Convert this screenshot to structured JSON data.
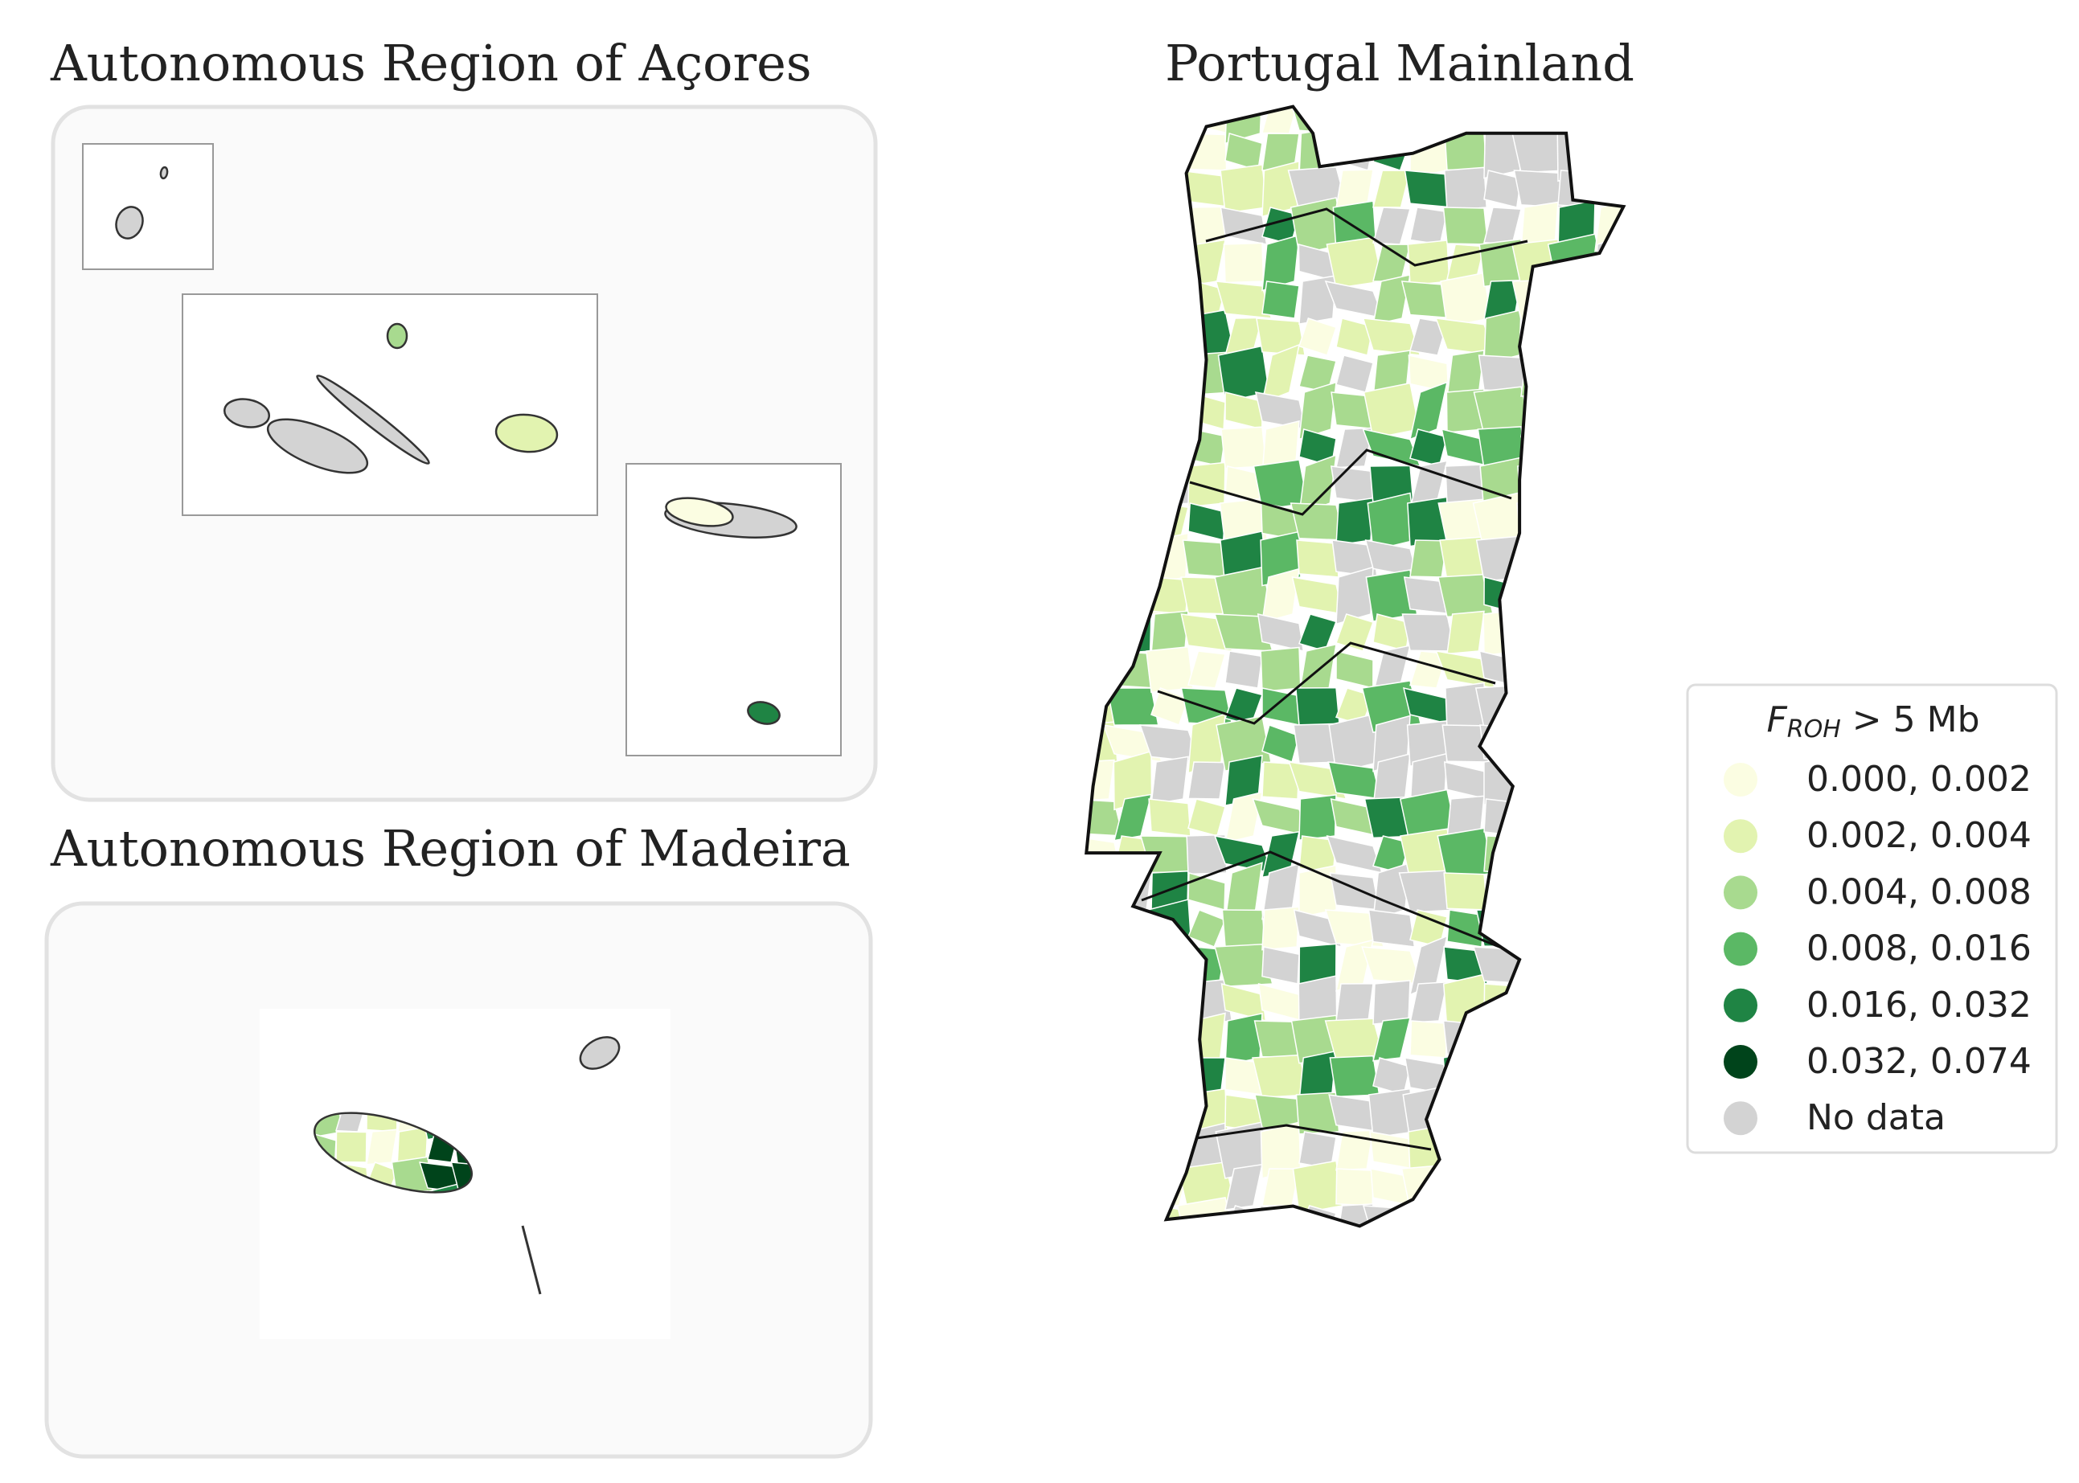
{
  "panels": [
    {
      "title": "Autonomous Region of Açores"
    },
    {
      "title": "Autonomous Region of Madeira"
    },
    {
      "title": "Portugal Mainland"
    }
  ],
  "legend": {
    "title_symbol": "F",
    "title_subscript": "ROH",
    "title_rest": "> 5 Mb",
    "items": [
      {
        "label": "0.000, 0.002",
        "color": "#fbfde2"
      },
      {
        "label": "0.002, 0.004",
        "color": "#e2f3b0"
      },
      {
        "label": "0.004, 0.008",
        "color": "#a8da8f"
      },
      {
        "label": "0.008, 0.016",
        "color": "#5bb865"
      },
      {
        "label": "0.016, 0.032",
        "color": "#1f8444"
      },
      {
        "label": "0.032, 0.074",
        "color": "#00441b"
      },
      {
        "label": "No data",
        "color": "#d3d3d3"
      }
    ]
  }
}
